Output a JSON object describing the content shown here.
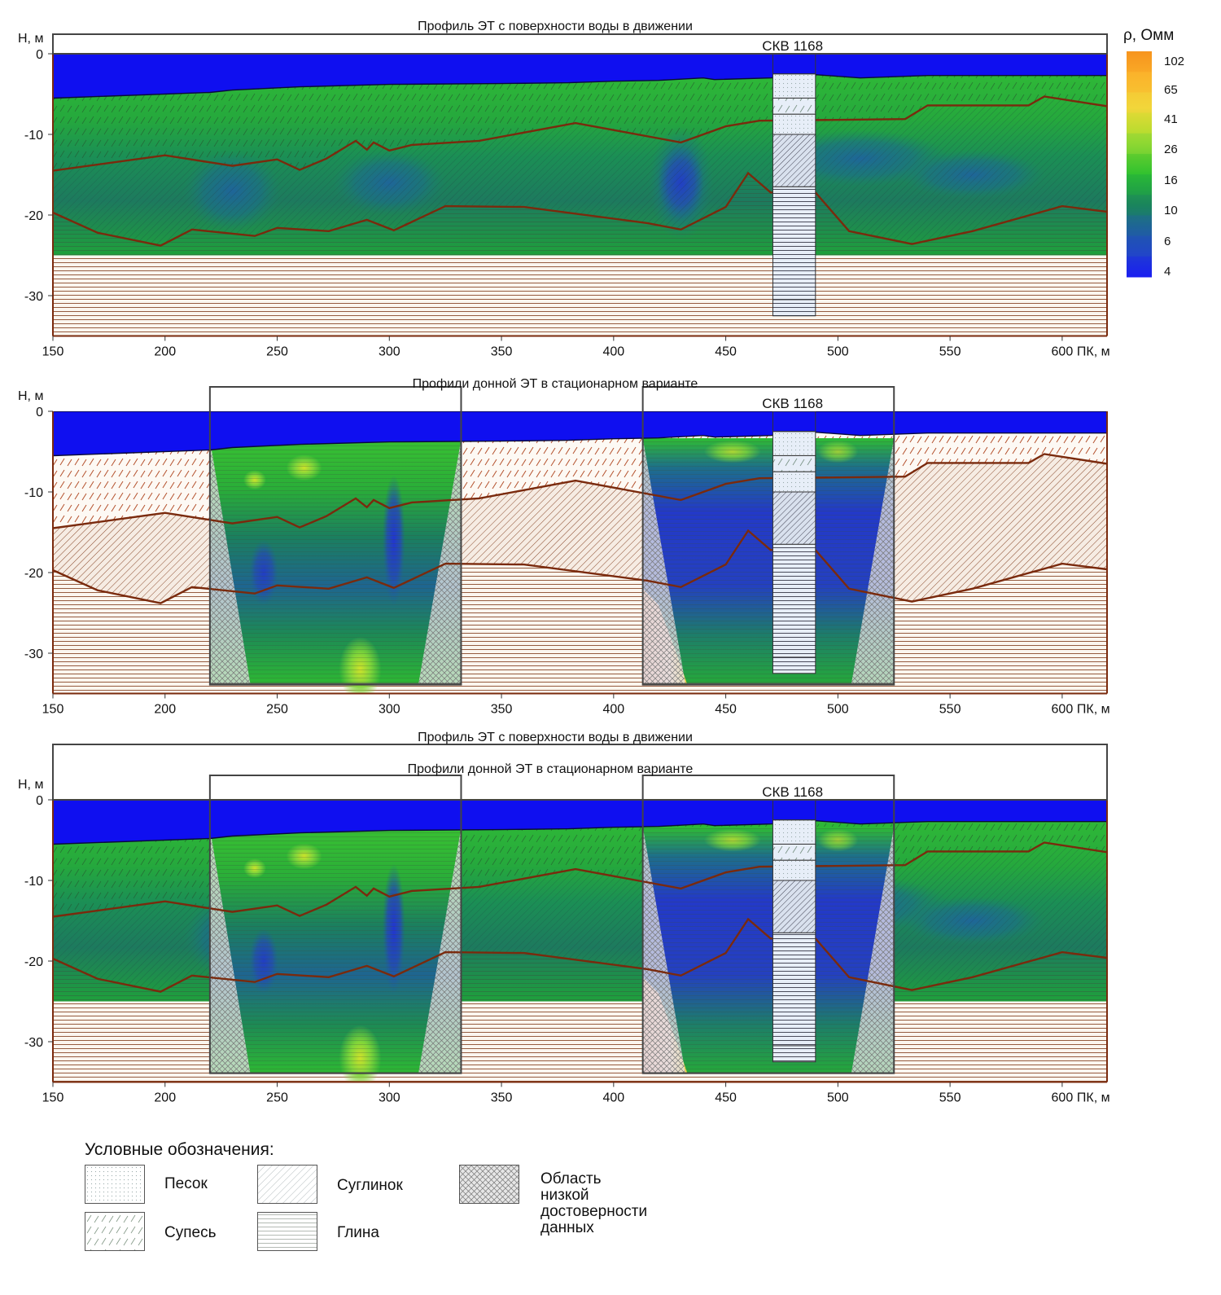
{
  "chart_data": {
    "type": "heatmap",
    "colorbar": {
      "title": "ρ, Омм",
      "tick_labels": [
        "102",
        "65",
        "41",
        "26",
        "16",
        "10",
        "6",
        "4"
      ],
      "colors": [
        "#f7941d",
        "#fbb32b",
        "#f2d63a",
        "#cde22b",
        "#7fd53a",
        "#2fc12f",
        "#1a9e4a",
        "#1a7a6a",
        "#1f5fa0",
        "#2146c8",
        "#1a1ff0"
      ]
    },
    "x_ticks": [
      150,
      200,
      250,
      300,
      350,
      400,
      450,
      500,
      550,
      600
    ],
    "x_tick_labels": [
      "150",
      "200",
      "250",
      "300",
      "350",
      "400",
      "450",
      "500",
      "550",
      "600"
    ],
    "x_axis_label": "ПК, м",
    "y_ticks": [
      0,
      -10,
      -20,
      -30
    ],
    "y_tick_labels": [
      "0",
      "-10",
      "-20",
      "-30"
    ],
    "y_axis_label": "H, м",
    "xlim": [
      150,
      620
    ],
    "ylim": [
      -35,
      0
    ],
    "well": {
      "label": "СКВ 1168",
      "x_range": [
        471,
        490
      ],
      "bottom": -32.5,
      "layer_tops": [
        -2.5,
        -5.5,
        -7.5,
        -10,
        -16.5,
        -30.5
      ]
    },
    "boundaries": {
      "water_bottom": [
        [
          150,
          -5.5
        ],
        [
          220,
          -4.8
        ],
        [
          230,
          -4.5
        ],
        [
          260,
          -4.1
        ],
        [
          300,
          -3.8
        ],
        [
          350,
          -3.7
        ],
        [
          380,
          -3.6
        ],
        [
          400,
          -3.4
        ],
        [
          420,
          -3.3
        ],
        [
          440,
          -3.0
        ],
        [
          445,
          -3.2
        ],
        [
          470,
          -3.0
        ],
        [
          490,
          -2.6
        ],
        [
          510,
          -3.0
        ],
        [
          540,
          -2.7
        ],
        [
          620,
          -2.7
        ]
      ],
      "layer_1": [
        [
          150,
          -14.5
        ],
        [
          200,
          -12.6
        ],
        [
          230,
          -13.9
        ],
        [
          250,
          -13.1
        ],
        [
          260,
          -14.4
        ],
        [
          272,
          -13.0
        ],
        [
          285,
          -10.8
        ],
        [
          290,
          -11.9
        ],
        [
          293,
          -11.0
        ],
        [
          300,
          -12.0
        ],
        [
          310,
          -11.3
        ],
        [
          340,
          -10.8
        ],
        [
          383,
          -8.6
        ],
        [
          430,
          -11.0
        ],
        [
          450,
          -9.0
        ],
        [
          465,
          -8.3
        ],
        [
          530,
          -8.1
        ],
        [
          540,
          -6.4
        ],
        [
          585,
          -6.4
        ],
        [
          592,
          -5.3
        ],
        [
          620,
          -6.5
        ]
      ],
      "layer_2": [
        [
          150,
          -19.7
        ],
        [
          170,
          -22.2
        ],
        [
          198,
          -23.8
        ],
        [
          212,
          -21.8
        ],
        [
          240,
          -22.6
        ],
        [
          250,
          -21.6
        ],
        [
          273,
          -22.0
        ],
        [
          290,
          -20.6
        ],
        [
          302,
          -21.9
        ],
        [
          325,
          -18.9
        ],
        [
          360,
          -19.0
        ],
        [
          415,
          -21.0
        ],
        [
          430,
          -21.8
        ],
        [
          450,
          -19.0
        ],
        [
          460,
          -14.8
        ],
        [
          470,
          -17.2
        ],
        [
          490,
          -17.2
        ],
        [
          505,
          -22.0
        ],
        [
          533,
          -23.6
        ],
        [
          560,
          -22.0
        ],
        [
          600,
          -18.9
        ],
        [
          620,
          -19.6
        ]
      ]
    },
    "panels": [
      {
        "title": "Профиль ЭТ с поверхности воды в движении",
        "subtitle": "",
        "well_label": "СКВ 1168",
        "survey_windows": []
      },
      {
        "title": "Профили донной ЭТ в стационарном варианте",
        "subtitle": "",
        "well_label": "СКВ 1168",
        "survey_windows": [
          [
            220,
            332
          ],
          [
            413,
            525
          ]
        ]
      },
      {
        "title": "Профиль ЭТ с поверхности воды в движении",
        "subtitle": "Профили донной ЭТ в стационарном варианте",
        "well_label": "СКВ 1168",
        "survey_windows": [
          [
            220,
            332
          ],
          [
            413,
            525
          ]
        ]
      }
    ]
  },
  "legend": {
    "title": "Условные обозначения:",
    "items": [
      {
        "label": "Песок",
        "pattern": "sand"
      },
      {
        "label": "Супесь",
        "pattern": "sandy-loam"
      },
      {
        "label": "Суглинок",
        "pattern": "loam"
      },
      {
        "label": "Глина",
        "pattern": "clay"
      },
      {
        "label": "Область низкой\nдостоверности данных",
        "pattern": "low-confidence"
      }
    ]
  }
}
